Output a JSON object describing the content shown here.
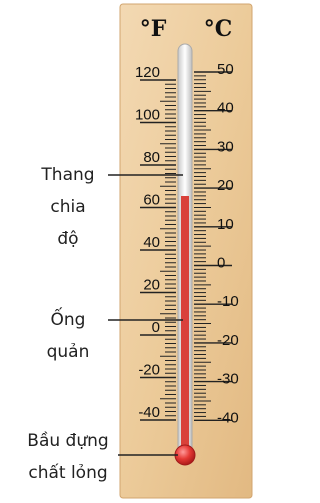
{
  "units": {
    "fahrenheit": "°F",
    "celsius": "°C"
  },
  "fahrenheit_ticks": [
    "120",
    "100",
    "80",
    "60",
    "40",
    "20",
    "0",
    "-20",
    "-40"
  ],
  "celsius_ticks": [
    "50",
    "40",
    "30",
    "20",
    "10",
    "0",
    "-10",
    "-20",
    "-30",
    "-40"
  ],
  "labels": [
    {
      "lines": [
        "Thang",
        "chia",
        "độ"
      ]
    },
    {
      "lines": [
        "Ống",
        "quản"
      ]
    },
    {
      "lines": [
        "Bầu đựng",
        "chất lỏng"
      ]
    }
  ]
}
